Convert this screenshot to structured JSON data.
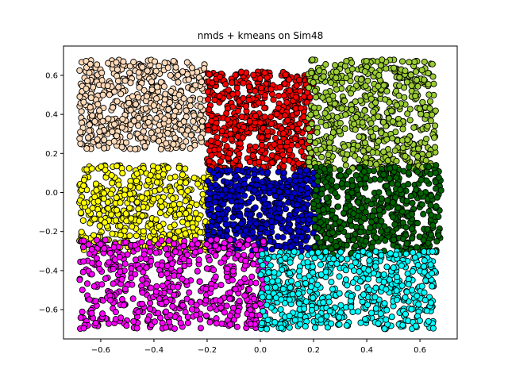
{
  "chart_data": {
    "type": "scatter",
    "title": "nmds + kmeans on Sim48",
    "xlabel": "",
    "ylabel": "",
    "xlim": [
      -0.74,
      0.74
    ],
    "ylim": [
      -0.75,
      0.75
    ],
    "xticks": [
      -0.6,
      -0.4,
      -0.2,
      0.0,
      0.2,
      0.4,
      0.6
    ],
    "yticks": [
      -0.6,
      -0.4,
      -0.2,
      0.0,
      0.2,
      0.4,
      0.6
    ],
    "xtick_labels": [
      "−0.6",
      "−0.4",
      "−0.2",
      "0.0",
      "0.2",
      "0.4",
      "0.6"
    ],
    "ytick_labels": [
      "−0.6",
      "−0.4",
      "−0.2",
      "0.0",
      "0.2",
      "0.4",
      "0.6"
    ],
    "grid": false,
    "legend": "none",
    "marker_edge_color": "#000000",
    "clusters": [
      {
        "color": "#ffdab9",
        "x_range": [
          -0.68,
          -0.2
        ],
        "y_range": [
          0.22,
          0.68
        ],
        "approx_count": 550
      },
      {
        "color": "#ff0000",
        "x_range": [
          -0.2,
          0.2
        ],
        "y_range": [
          0.12,
          0.62
        ],
        "approx_count": 600
      },
      {
        "color": "#9acd32",
        "x_range": [
          0.18,
          0.66
        ],
        "y_range": [
          0.12,
          0.68
        ],
        "approx_count": 600
      },
      {
        "color": "#ffff00",
        "x_range": [
          -0.68,
          -0.18
        ],
        "y_range": [
          -0.3,
          0.14
        ],
        "approx_count": 500
      },
      {
        "color": "#0000cd",
        "x_range": [
          -0.2,
          0.22
        ],
        "y_range": [
          -0.3,
          0.12
        ],
        "approx_count": 550
      },
      {
        "color": "#006400",
        "x_range": [
          0.2,
          0.68
        ],
        "y_range": [
          -0.32,
          0.14
        ],
        "approx_count": 550
      },
      {
        "color": "#ff00ff",
        "x_range": [
          -0.68,
          0.02
        ],
        "y_range": [
          -0.7,
          -0.24
        ],
        "approx_count": 600
      },
      {
        "color": "#00ffff",
        "x_range": [
          0.0,
          0.66
        ],
        "y_range": [
          -0.7,
          -0.3
        ],
        "approx_count": 600
      }
    ]
  }
}
